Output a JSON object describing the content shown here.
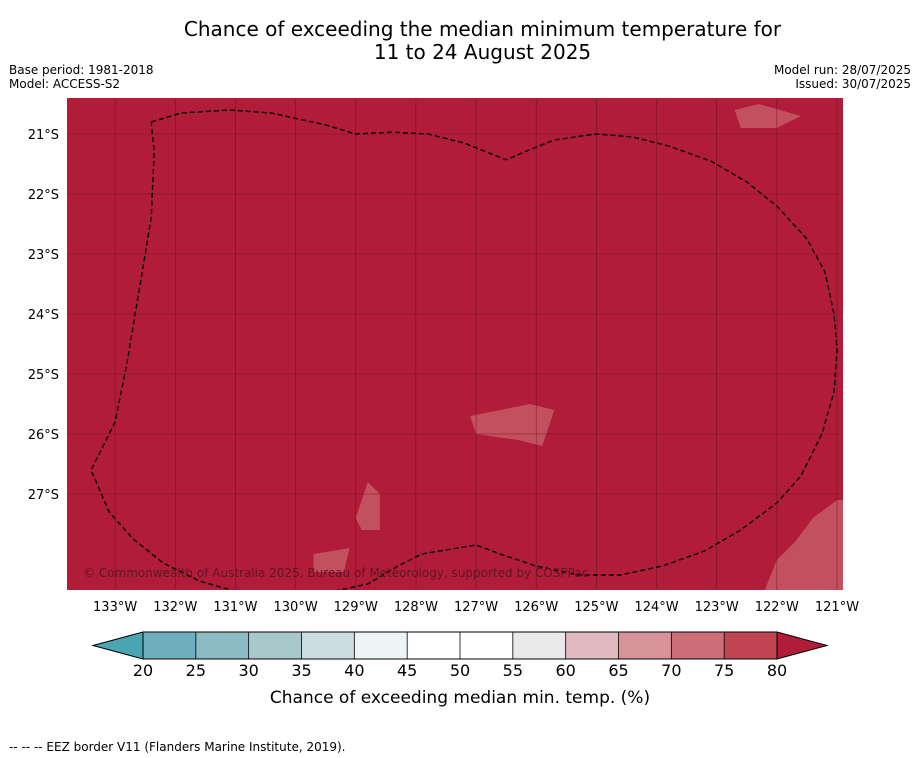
{
  "title_line1": "Chance of exceeding the median minimum temperature for",
  "title_line2": "11 to 24 August 2025",
  "meta": {
    "base_period": "Base period: 1981-2018",
    "model": "Model: ACCESS-S2",
    "model_run": "Model run: 28/07/2025",
    "issued": "Issued: 30/07/2025"
  },
  "copyright": "© Commonwealth of Australia 2025, Bureau of Meteorology, supported by COSPPac",
  "footer_note": "--  --  -- EEZ border V11 (Flanders Marine Institute, 2019).",
  "colors": {
    "background_class": "#B11C39",
    "light_patch": "#C3505E",
    "grid": "#5e0f1d"
  },
  "chart_data": {
    "type": "heatmap",
    "title": "Chance of exceeding the median minimum temperature for 11 to 24 August 2025",
    "x_ticks": [
      "133°W",
      "132°W",
      "131°W",
      "130°W",
      "129°W",
      "128°W",
      "127°W",
      "126°W",
      "125°W",
      "124°W",
      "123°W",
      "122°W",
      "121°W"
    ],
    "x_tick_values": [
      -133,
      -132,
      -131,
      -130,
      -129,
      -128,
      -127,
      -126,
      -125,
      -124,
      -123,
      -122,
      -121
    ],
    "y_ticks": [
      "21°S",
      "22°S",
      "23°S",
      "24°S",
      "25°S",
      "26°S",
      "27°S"
    ],
    "y_tick_values": [
      -21,
      -22,
      -23,
      -24,
      -25,
      -26,
      -27
    ],
    "xlim": [
      -133.8,
      -120.9
    ],
    "ylim": [
      -28.6,
      -20.4
    ],
    "grid": true,
    "dominant_class": "80+",
    "secondary_class": "75-80",
    "patches": [
      {
        "class": "75-80",
        "points": [
          [
            -122.7,
            -20.6
          ],
          [
            -122.3,
            -20.5
          ],
          [
            -121.6,
            -20.7
          ],
          [
            -122.0,
            -20.9
          ],
          [
            -122.6,
            -20.9
          ]
        ]
      },
      {
        "class": "75-80",
        "points": [
          [
            -126.1,
            -25.5
          ],
          [
            -125.7,
            -25.6
          ],
          [
            -125.9,
            -26.2
          ],
          [
            -126.3,
            -26.1
          ],
          [
            -127.0,
            -26.0
          ],
          [
            -127.1,
            -25.7
          ]
        ]
      },
      {
        "class": "75-80",
        "points": [
          [
            -128.8,
            -26.8
          ],
          [
            -128.6,
            -27.0
          ],
          [
            -128.6,
            -27.6
          ],
          [
            -128.9,
            -27.6
          ],
          [
            -129.0,
            -27.4
          ]
        ]
      },
      {
        "class": "75-80",
        "points": [
          [
            -129.7,
            -28.0
          ],
          [
            -129.1,
            -27.9
          ],
          [
            -129.2,
            -28.3
          ],
          [
            -129.7,
            -28.3
          ]
        ]
      },
      {
        "class": "75-80",
        "points": [
          [
            -121.0,
            -27.1
          ],
          [
            -120.9,
            -27.1
          ],
          [
            -120.9,
            -28.6
          ],
          [
            -122.2,
            -28.6
          ],
          [
            -122.0,
            -28.1
          ],
          [
            -121.7,
            -27.8
          ],
          [
            -121.4,
            -27.4
          ]
        ]
      },
      {
        "class": "75-80",
        "points": [
          [
            -121.0,
            -27.5
          ],
          [
            -120.9,
            -27.4
          ],
          [
            -120.9,
            -27.7
          ]
        ]
      },
      {
        "class": "75-80",
        "points": [
          [
            -122.0,
            -28.3
          ],
          [
            -121.3,
            -28.2
          ],
          [
            -120.9,
            -28.3
          ],
          [
            -120.9,
            -28.4
          ],
          [
            -122.0,
            -28.4
          ]
        ]
      }
    ],
    "eez_border": [
      [
        -132.4,
        -20.8
      ],
      [
        -131.9,
        -20.65
      ],
      [
        -131.1,
        -20.6
      ],
      [
        -130.4,
        -20.65
      ],
      [
        -129.5,
        -20.85
      ],
      [
        -129.0,
        -21.0
      ],
      [
        -128.4,
        -20.97
      ],
      [
        -127.8,
        -21.0
      ],
      [
        -127.2,
        -21.15
      ],
      [
        -126.7,
        -21.35
      ],
      [
        -126.5,
        -21.43
      ],
      [
        -126.2,
        -21.3
      ],
      [
        -125.7,
        -21.1
      ],
      [
        -125.0,
        -21.0
      ],
      [
        -124.4,
        -21.05
      ],
      [
        -123.8,
        -21.2
      ],
      [
        -123.1,
        -21.45
      ],
      [
        -122.5,
        -21.8
      ],
      [
        -122.0,
        -22.2
      ],
      [
        -121.5,
        -22.75
      ],
      [
        -121.2,
        -23.3
      ],
      [
        -121.05,
        -24.0
      ],
      [
        -121.0,
        -24.6
      ],
      [
        -121.05,
        -25.3
      ],
      [
        -121.25,
        -26.0
      ],
      [
        -121.6,
        -26.7
      ],
      [
        -122.0,
        -27.15
      ],
      [
        -122.6,
        -27.6
      ],
      [
        -123.2,
        -27.95
      ],
      [
        -123.9,
        -28.2
      ],
      [
        -124.6,
        -28.35
      ],
      [
        -125.3,
        -28.35
      ],
      [
        -126.0,
        -28.2
      ],
      [
        -126.6,
        -28.0
      ],
      [
        -127.0,
        -27.85
      ],
      [
        -127.9,
        -28.0
      ],
      [
        -128.3,
        -28.2
      ],
      [
        -128.8,
        -28.5
      ],
      [
        -129.5,
        -28.65
      ],
      [
        -130.2,
        -28.7
      ],
      [
        -130.9,
        -28.65
      ],
      [
        -131.6,
        -28.45
      ],
      [
        -132.2,
        -28.15
      ],
      [
        -132.7,
        -27.75
      ],
      [
        -133.1,
        -27.3
      ],
      [
        -133.4,
        -26.6
      ],
      [
        -133.0,
        -25.8
      ],
      [
        -132.8,
        -24.8
      ],
      [
        -132.6,
        -23.6
      ],
      [
        -132.4,
        -22.4
      ],
      [
        -132.35,
        -21.3
      ],
      [
        -132.4,
        -20.8
      ]
    ],
    "colorbar": {
      "label": "Chance of exceeding median min. temp. (%)",
      "ticks": [
        "20",
        "25",
        "30",
        "35",
        "40",
        "45",
        "50",
        "55",
        "60",
        "65",
        "70",
        "75",
        "80"
      ],
      "tick_values": [
        20,
        25,
        30,
        35,
        40,
        45,
        50,
        55,
        60,
        65,
        70,
        75,
        80
      ],
      "colors": [
        "#4BA6B4",
        "#6FB0BF",
        "#8DBBC5",
        "#A9C8CC",
        "#CCDDE0",
        "#EEF3F5",
        "#FFFFFF",
        "#FFFFFF",
        "#E9E9E9",
        "#E1BAC0",
        "#D8939A",
        "#CD6E78",
        "#C04452",
        "#B11C39"
      ],
      "extend": "both"
    }
  }
}
